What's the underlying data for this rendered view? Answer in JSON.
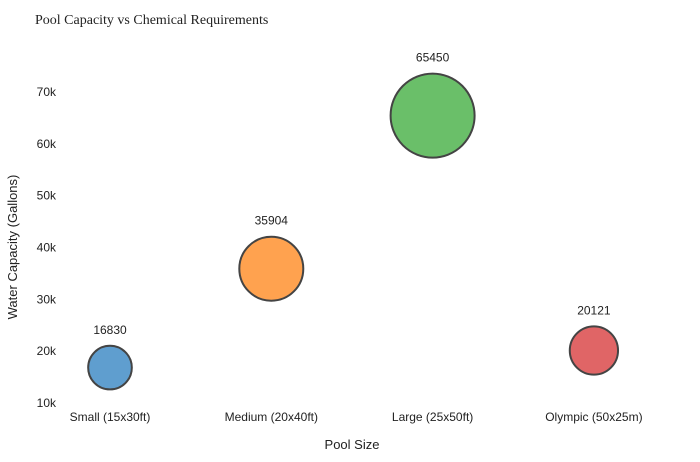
{
  "chart_data": {
    "type": "scatter",
    "subtype": "bubble",
    "title": "Pool Capacity vs Chemical Requirements",
    "xlabel": "Pool Size",
    "ylabel": "Water Capacity (Gallons)",
    "categories": [
      "Small (15x30ft)",
      "Medium (20x40ft)",
      "Large (25x50ft)",
      "Olympic (50x25m)"
    ],
    "values": [
      16830,
      35904,
      65450,
      20121
    ],
    "data_labels": [
      "16830",
      "35904",
      "65450",
      "20121"
    ],
    "relative_bubble_size": [
      0.27,
      0.58,
      1.0,
      0.33
    ],
    "colors": [
      "#5f9ecf",
      "#ffa24f",
      "#6abf69",
      "#e06566"
    ],
    "yticks": [
      10000,
      20000,
      30000,
      40000,
      50000,
      60000,
      70000
    ],
    "ytick_labels": [
      "10k",
      "20k",
      "30k",
      "40k",
      "50k",
      "60k",
      "70k"
    ],
    "ylim": [
      10000,
      70000
    ],
    "grid": false,
    "legend": "none"
  }
}
